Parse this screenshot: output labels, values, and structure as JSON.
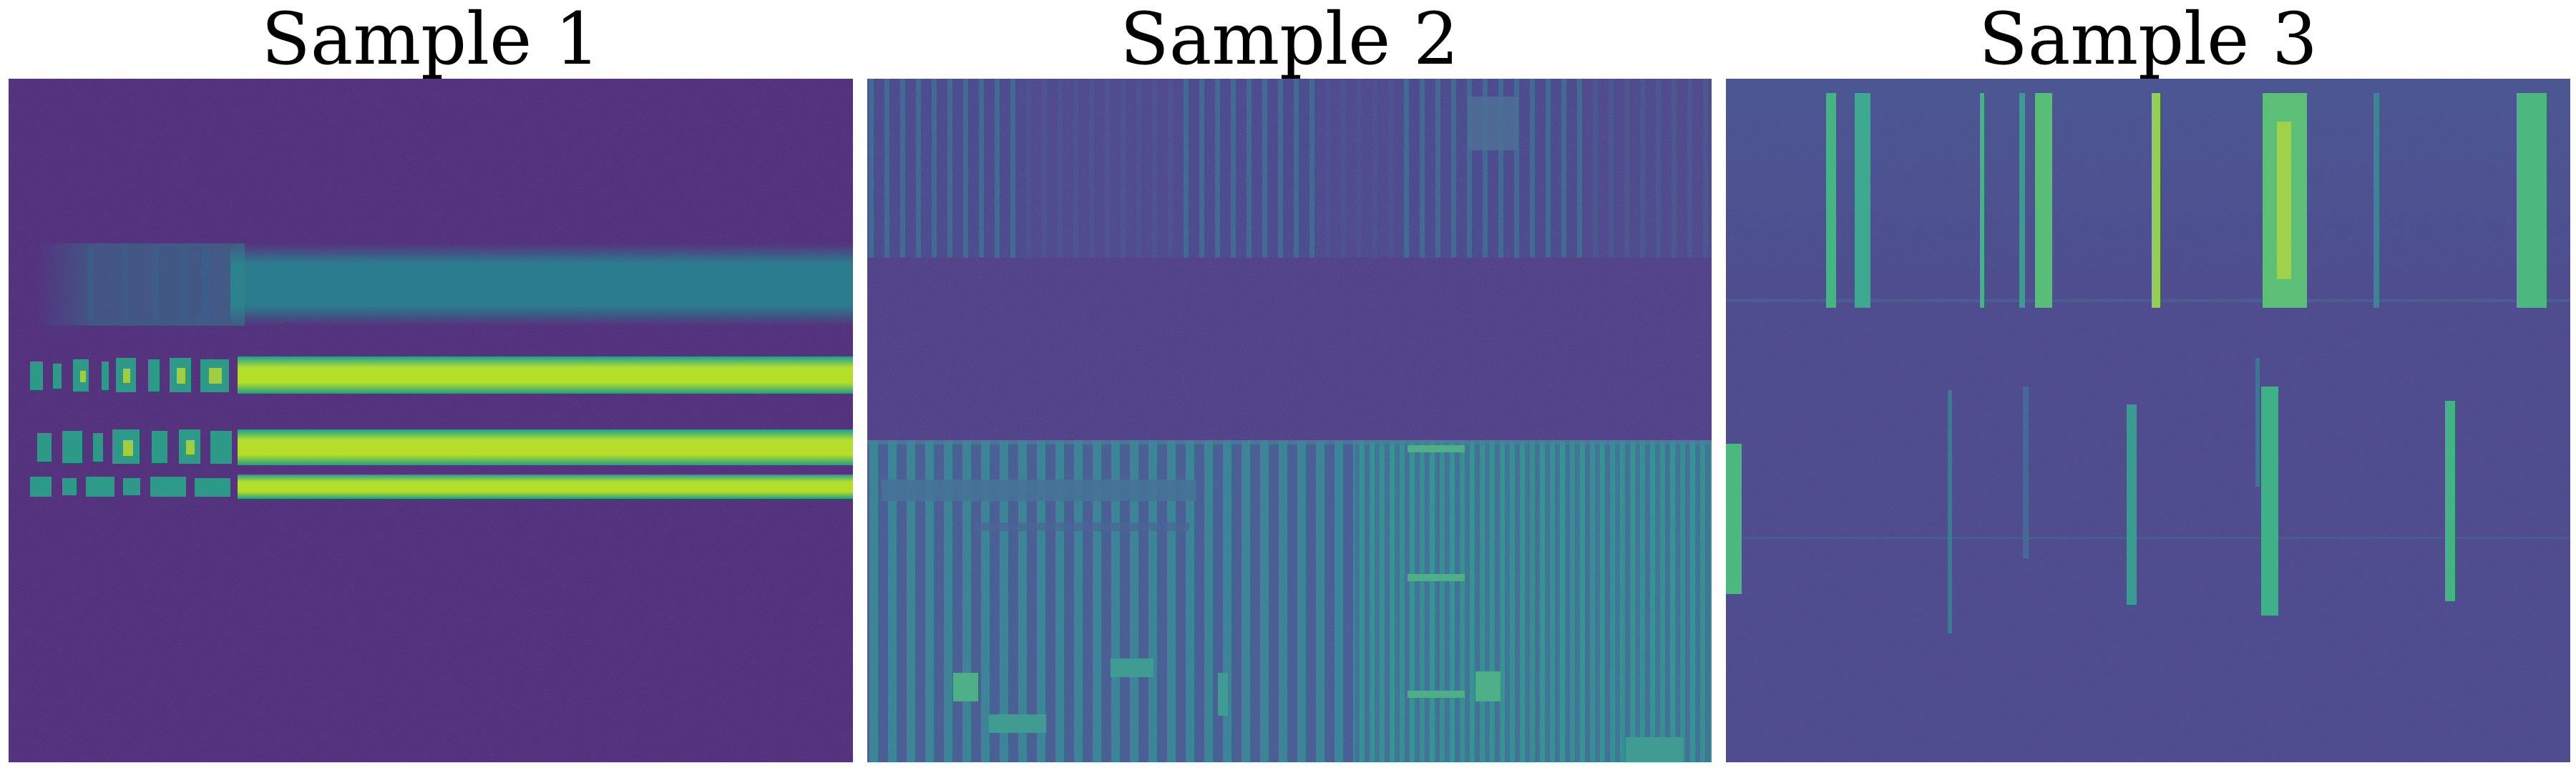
{
  "panels": [
    {
      "id": "sample-1",
      "title": "Sample 1"
    },
    {
      "id": "sample-2",
      "title": "Sample 2"
    },
    {
      "id": "sample-3",
      "title": "Sample 3"
    }
  ],
  "colors": {
    "background_viridis_low": "#45206f",
    "mid_teal": "#2c8a8c",
    "bright_yellowgreen": "#b6de2b",
    "green": "#4ec36b"
  }
}
